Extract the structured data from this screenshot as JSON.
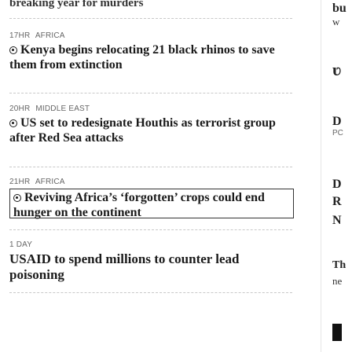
{
  "feed": {
    "top_headline": "breaking year for murders",
    "items": [
      {
        "time": "17HR",
        "region": "AFRICA",
        "headline": "Kenya begins relocating 21 black rhinos to save them from extinction",
        "live": true
      },
      {
        "time": "20HR",
        "region": "MIDDLE EAST",
        "headline": "US set to redesignate Houthis as terrorist group after Red Sea attacks",
        "live": true
      },
      {
        "time": "21HR",
        "region": "AFRICA",
        "headline": "Reviving Africa’s ‘forgotten’ crops could end hunger on the continent",
        "live": true
      },
      {
        "time": "1 DAY",
        "region": "",
        "headline": "USAID to spend millions to counter lead poisoning",
        "live": false
      }
    ]
  },
  "right_column": {
    "fragments": [
      "bu",
      "w",
      "D",
      "PC",
      "D",
      "R",
      "N",
      "Th",
      "ne"
    ]
  },
  "icons": {
    "live": "live-indicator-icon"
  }
}
